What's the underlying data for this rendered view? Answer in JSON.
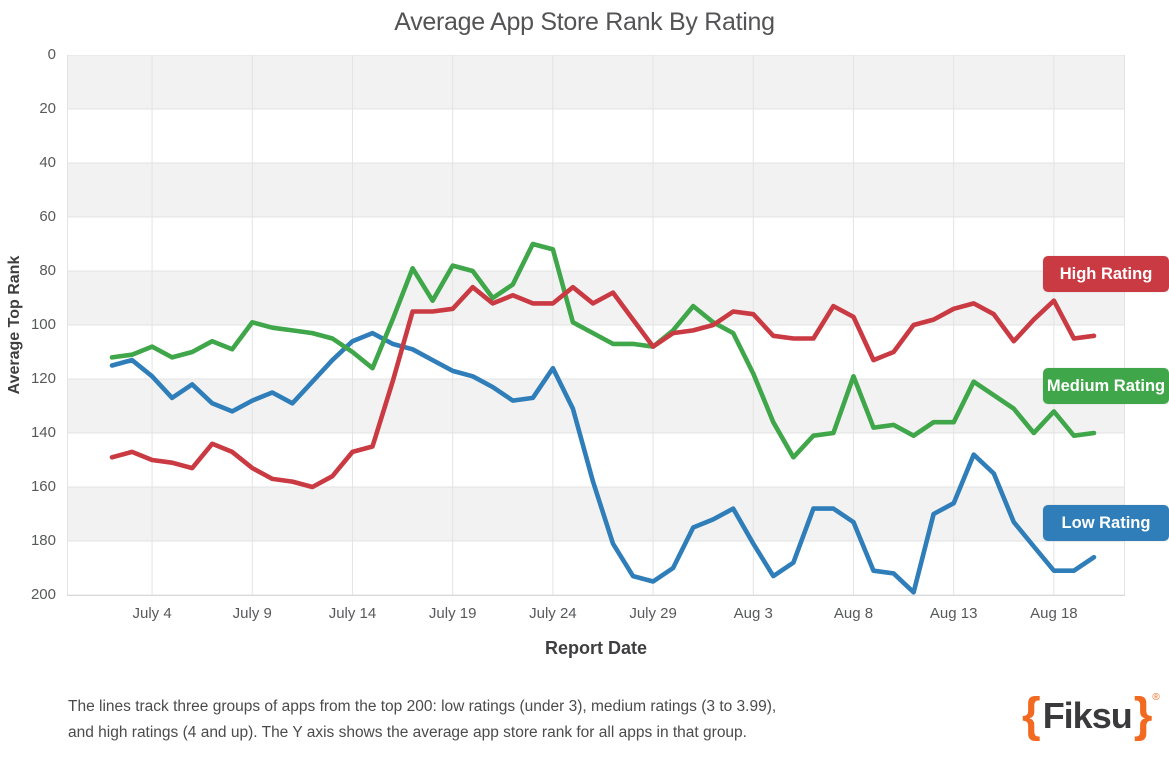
{
  "chart_data": {
    "type": "line",
    "title": "Average App Store Rank By Rating",
    "xlabel": "Report Date",
    "ylabel": "Average Top Rank",
    "y_axis": {
      "min": 0,
      "max": 200,
      "step": 20,
      "inverted": true,
      "ticks": [
        "0",
        "20",
        "40",
        "60",
        "80",
        "100",
        "120",
        "140",
        "160",
        "180",
        "200"
      ]
    },
    "x_ticks": [
      "July 4",
      "July 9",
      "July 14",
      "July 19",
      "July 24",
      "July 29",
      "Aug 3",
      "Aug 8",
      "Aug 13",
      "Aug 18"
    ],
    "x_tick_indices": [
      2,
      7,
      12,
      17,
      22,
      27,
      32,
      37,
      42,
      47
    ],
    "x_dates": [
      "July 2",
      "July 3",
      "July 4",
      "July 5",
      "July 6",
      "July 7",
      "July 8",
      "July 9",
      "July 10",
      "July 11",
      "July 12",
      "July 13",
      "July 14",
      "July 15",
      "July 16",
      "July 17",
      "July 18",
      "July 19",
      "July 20",
      "July 21",
      "July 22",
      "July 23",
      "July 24",
      "July 25",
      "July 26",
      "July 27",
      "July 28",
      "July 29",
      "July 30",
      "July 31",
      "Aug 1",
      "Aug 2",
      "Aug 3",
      "Aug 4",
      "Aug 5",
      "Aug 6",
      "Aug 7",
      "Aug 8",
      "Aug 9",
      "Aug 10",
      "Aug 11",
      "Aug 12",
      "Aug 13",
      "Aug 14",
      "Aug 15",
      "Aug 16",
      "Aug 17",
      "Aug 18",
      "Aug 19",
      "Aug 20"
    ],
    "legend_position": "right",
    "grid": true,
    "band_color": "#f2f2f2",
    "gridline_color": "#e3e3e3",
    "series": [
      {
        "name": "High Rating",
        "color": "#ca3a42",
        "values": [
          149,
          147,
          150,
          151,
          153,
          144,
          147,
          153,
          157,
          158,
          160,
          156,
          147,
          145,
          121,
          95,
          95,
          94,
          86,
          92,
          89,
          92,
          92,
          86,
          92,
          88,
          98,
          108,
          103,
          102,
          100,
          95,
          96,
          104,
          105,
          105,
          93,
          97,
          113,
          110,
          100,
          98,
          94,
          92,
          96,
          106,
          98,
          91,
          105,
          104
        ]
      },
      {
        "name": "Medium Rating",
        "color": "#3fa64a",
        "values": [
          112,
          111,
          108,
          112,
          110,
          106,
          109,
          99,
          101,
          102,
          103,
          105,
          110,
          116,
          98,
          79,
          91,
          78,
          80,
          90,
          85,
          70,
          72,
          99,
          103,
          107,
          107,
          108,
          102,
          93,
          99,
          103,
          118,
          136,
          149,
          141,
          140,
          119,
          138,
          137,
          141,
          136,
          136,
          121,
          126,
          131,
          140,
          132,
          141,
          140
        ]
      },
      {
        "name": "Low Rating",
        "color": "#2f7eb9",
        "values": [
          115,
          113,
          119,
          127,
          122,
          129,
          132,
          128,
          125,
          129,
          121,
          113,
          106,
          103,
          107,
          109,
          113,
          117,
          119,
          123,
          128,
          127,
          116,
          131,
          158,
          181,
          193,
          195,
          190,
          175,
          172,
          168,
          181,
          193,
          188,
          168,
          168,
          173,
          191,
          192,
          199,
          170,
          166,
          148,
          155,
          173,
          182,
          191,
          191,
          186
        ]
      }
    ]
  },
  "caption": {
    "line1": "The lines track three groups of apps from the top 200: low ratings (under 3), medium ratings (3 to 3.99),",
    "line2": "and high ratings (4 and up). The Y axis shows the average app store rank for all apps in that group."
  },
  "logo": {
    "open_brace": "{",
    "text": "Fiksu",
    "close_brace": "}",
    "registered": "®"
  }
}
